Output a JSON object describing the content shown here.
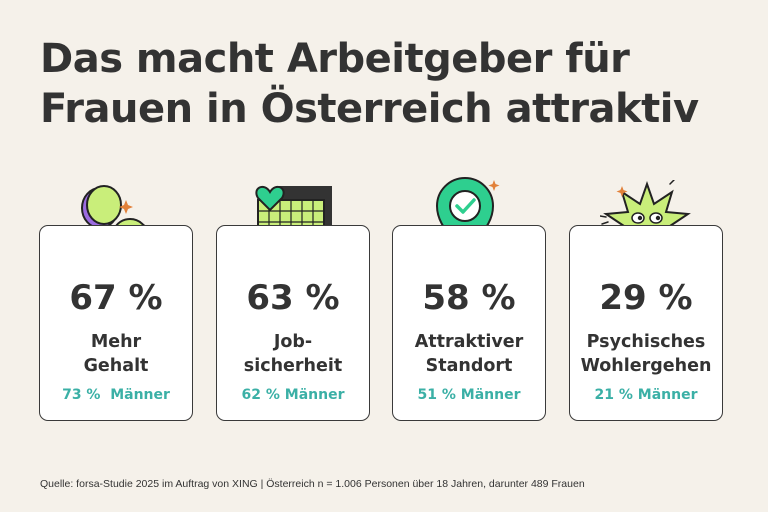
{
  "title": "Das macht Arbeitgeber für Frauen in Österreich attraktiv",
  "chart_data": {
    "type": "table",
    "title": "Das macht Arbeitgeber für Frauen in Österreich attraktiv",
    "categories": [
      "Mehr Gehalt",
      "Jobsicherheit",
      "Attraktiver Standort",
      "Psychisches Wohlergehen"
    ],
    "series": [
      {
        "name": "Frauen",
        "values": [
          67,
          63,
          58,
          29
        ]
      },
      {
        "name": "Männer",
        "values": [
          73,
          62,
          51,
          21
        ]
      }
    ],
    "unit": "%"
  },
  "cards": [
    {
      "percent": "67 %",
      "label_line1": "Mehr",
      "label_line2": "Gehalt",
      "men": "73 %  Männer",
      "icon": "coins-icon"
    },
    {
      "percent": "63 %",
      "label_line1": "Job-",
      "label_line2": "sicherheit",
      "men": "62 % Männer",
      "icon": "building-heart-icon"
    },
    {
      "percent": "58 %",
      "label_line1": "Attraktiver",
      "label_line2": "Standort",
      "men": "51 % Männer",
      "icon": "location-pin-icon"
    },
    {
      "percent": "29 %",
      "label_line1": "Psychisches",
      "label_line2": "Wohlergehen",
      "men": "21 % Männer",
      "icon": "happy-star-icon"
    }
  ],
  "source": "Quelle: forsa-Studie 2025 im Auftrag von XING | Österreich n = 1.006 Personen über 18 Jahren, darunter 489 Frauen",
  "colors": {
    "background": "#f5f1ea",
    "text": "#333333",
    "accent_teal": "#3bb0a6",
    "lime": "#c9ee7a",
    "green": "#2ecf8f",
    "purple": "#9b6be0"
  }
}
